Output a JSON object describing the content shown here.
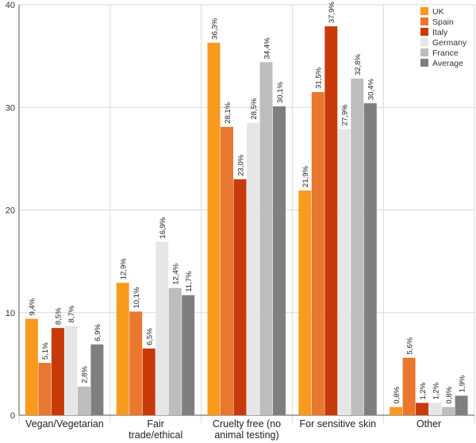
{
  "chart_data": {
    "type": "bar",
    "title": "",
    "xlabel": "",
    "ylabel": "",
    "ylim": [
      0,
      40
    ],
    "yticks": [
      0,
      10,
      20,
      30,
      40
    ],
    "grid": true,
    "legend_position": "top-right",
    "categories": [
      [
        "Vegan/Vegetarian"
      ],
      [
        "Fair",
        "trade/ethical"
      ],
      [
        "Cruelty free (no",
        "animal testing)"
      ],
      [
        "For sensitive skin"
      ],
      [
        "Other"
      ]
    ],
    "series": [
      {
        "name": "UK",
        "color": "#F79A1E",
        "values": [
          9.4,
          12.9,
          36.3,
          21.9,
          0.8
        ],
        "labels": [
          "9,4%",
          "12,9%",
          "36,3%",
          "21,9%",
          "0,8%"
        ]
      },
      {
        "name": "Spain",
        "color": "#E9772F",
        "values": [
          5.1,
          10.1,
          28.1,
          31.5,
          5.6
        ],
        "labels": [
          "5,1%",
          "10,1%",
          "28,1%",
          "31,5%",
          "5,6%"
        ]
      },
      {
        "name": "Italy",
        "color": "#C93A0A",
        "values": [
          8.5,
          6.5,
          23.0,
          37.9,
          1.2
        ],
        "labels": [
          "8,5%",
          "6,5%",
          "23,0%",
          "37,9%",
          "1,2%"
        ]
      },
      {
        "name": "Germany",
        "color": "#E6E6E6",
        "values": [
          8.7,
          16.9,
          28.5,
          27.9,
          1.2
        ],
        "labels": [
          "8,7%",
          "16,9%",
          "28,5%",
          "27,9%",
          "1,2%"
        ]
      },
      {
        "name": "France",
        "color": "#BDBDBD",
        "values": [
          2.8,
          12.4,
          34.4,
          32.8,
          0.8
        ],
        "labels": [
          "2,8%",
          "12,4%",
          "34,4%",
          "32,8%",
          "0,8%"
        ]
      },
      {
        "name": "Average",
        "color": "#7F7F7F",
        "values": [
          6.9,
          11.7,
          30.1,
          30.4,
          1.9
        ],
        "labels": [
          "6,9%",
          "11,7%",
          "30,1%",
          "30,4%",
          "1,9%"
        ]
      }
    ]
  }
}
